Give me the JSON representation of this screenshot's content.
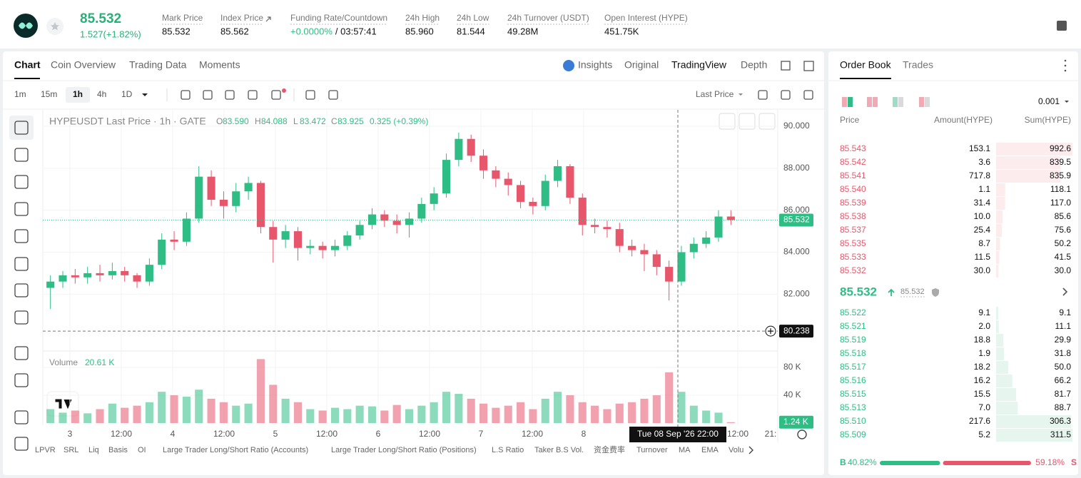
{
  "header": {
    "price": "85.532",
    "change": "1.527(+1.82%)",
    "stats": [
      {
        "label": "Mark Price",
        "value": "85.532"
      },
      {
        "label": "Index Price",
        "value": "85.562"
      },
      {
        "label": "Funding Rate/Countdown",
        "value": "+0.0000%",
        "extra": "/ 03:57:41"
      },
      {
        "label": "24h High",
        "value": "85.960"
      },
      {
        "label": "24h Low",
        "value": "81.544"
      },
      {
        "label": "24h Turnover (USDT)",
        "value": "49.28M"
      },
      {
        "label": "Open Interest (HYPE)",
        "value": "451.75K"
      }
    ]
  },
  "chart_tabs": [
    "Chart",
    "Coin Overview",
    "Trading Data",
    "Moments"
  ],
  "view_tabs": [
    "Insights",
    "Original",
    "TradingView",
    "Depth"
  ],
  "intervals": [
    "1m",
    "15m",
    "1h",
    "4h",
    "1D"
  ],
  "price_type": "Last Price",
  "legend": {
    "title": "HYPEUSDT Last Price · 1h · GATE",
    "ohlc_labels": [
      "O",
      "H",
      "L",
      "C"
    ],
    "ohlc": [
      "83.590",
      "84.088",
      "83.472",
      "83.925"
    ],
    "change": "0.325 (+0.39%)"
  },
  "chart": {
    "type": "candlestick",
    "candles": [
      [
        82.3,
        82.9,
        81.3,
        82.6
      ],
      [
        82.6,
        83.1,
        82.3,
        82.9
      ],
      [
        82.9,
        83.2,
        82.5,
        82.8
      ],
      [
        82.8,
        83.3,
        82.5,
        83.0
      ],
      [
        83.0,
        83.4,
        82.6,
        82.9
      ],
      [
        82.9,
        83.5,
        82.7,
        83.1
      ],
      [
        83.1,
        83.3,
        82.6,
        82.9
      ],
      [
        82.9,
        83.0,
        82.3,
        82.6
      ],
      [
        82.6,
        83.7,
        82.4,
        83.4
      ],
      [
        83.4,
        84.9,
        83.2,
        84.6
      ],
      [
        84.6,
        85.0,
        84.1,
        84.5
      ],
      [
        84.5,
        85.9,
        84.3,
        85.6
      ],
      [
        85.6,
        88.1,
        85.4,
        87.6
      ],
      [
        87.6,
        87.9,
        86.2,
        86.5
      ],
      [
        86.5,
        86.9,
        85.6,
        86.2
      ],
      [
        86.2,
        87.3,
        85.9,
        86.9
      ],
      [
        86.9,
        87.6,
        86.5,
        87.3
      ],
      [
        87.3,
        87.4,
        84.9,
        85.2
      ],
      [
        85.2,
        85.5,
        83.5,
        84.6
      ],
      [
        84.6,
        85.3,
        84.2,
        85.0
      ],
      [
        85.0,
        85.2,
        83.6,
        84.2
      ],
      [
        84.2,
        84.6,
        83.9,
        84.3
      ],
      [
        84.3,
        84.5,
        83.7,
        84.1
      ],
      [
        84.1,
        84.6,
        83.8,
        84.3
      ],
      [
        84.3,
        85.0,
        84.1,
        84.8
      ],
      [
        84.8,
        85.5,
        84.6,
        85.3
      ],
      [
        85.3,
        86.1,
        85.1,
        85.8
      ],
      [
        85.8,
        86.0,
        85.2,
        85.5
      ],
      [
        85.5,
        85.8,
        84.9,
        85.3
      ],
      [
        85.3,
        85.9,
        84.7,
        85.6
      ],
      [
        85.6,
        86.6,
        85.4,
        86.3
      ],
      [
        86.3,
        87.1,
        86.0,
        86.8
      ],
      [
        86.8,
        88.7,
        86.6,
        88.4
      ],
      [
        88.4,
        89.7,
        88.1,
        89.4
      ],
      [
        89.4,
        89.6,
        88.3,
        88.6
      ],
      [
        88.6,
        88.9,
        87.5,
        87.9
      ],
      [
        87.9,
        88.1,
        87.1,
        87.5
      ],
      [
        87.5,
        87.8,
        86.7,
        87.2
      ],
      [
        87.2,
        87.4,
        86.1,
        86.4
      ],
      [
        86.4,
        86.6,
        85.8,
        86.2
      ],
      [
        86.2,
        87.7,
        86.0,
        87.4
      ],
      [
        87.4,
        88.4,
        87.1,
        88.1
      ],
      [
        88.1,
        88.2,
        86.3,
        86.6
      ],
      [
        86.6,
        86.8,
        84.8,
        85.3
      ],
      [
        85.3,
        85.6,
        84.9,
        85.2
      ],
      [
        85.2,
        85.5,
        84.7,
        85.1
      ],
      [
        85.1,
        85.4,
        84.0,
        84.3
      ],
      [
        84.3,
        84.6,
        83.8,
        84.1
      ],
      [
        84.1,
        84.4,
        83.1,
        83.9
      ],
      [
        83.9,
        84.1,
        82.9,
        83.3
      ],
      [
        83.3,
        83.6,
        81.7,
        82.6
      ],
      [
        82.6,
        84.3,
        82.4,
        84.0
      ],
      [
        84.0,
        84.7,
        83.7,
        84.4
      ],
      [
        84.4,
        85.0,
        84.2,
        84.7
      ],
      [
        84.7,
        86.0,
        84.5,
        85.7
      ],
      [
        85.7,
        86.0,
        85.3,
        85.532
      ]
    ],
    "up_color": "#2ebd85",
    "down_color": "#e8566b",
    "ylim": [
      79.29,
      90.75
    ],
    "yticks": [
      {
        "value": 82,
        "label": "82.000"
      },
      {
        "value": 84,
        "label": "84.000"
      },
      {
        "value": 86,
        "label": "86.000"
      },
      {
        "value": 88,
        "label": "88.000"
      },
      {
        "value": 90,
        "label": "90.000"
      }
    ],
    "grid": true,
    "last_price": {
      "value": 85.532,
      "label": "85.532"
    },
    "crosshair": {
      "price": {
        "value": 80.238,
        "label": "80.238"
      },
      "time": "Tue 08 Sep '26  22:00"
    },
    "xlabels": [
      "3",
      "12:00",
      "4",
      "12:00",
      "5",
      "12:00",
      "6",
      "12:00",
      "7",
      "12:00",
      "8",
      "12:00",
      "21:"
    ],
    "volume": {
      "label": "Volume",
      "current": "20.61 K",
      "values": [
        20,
        15,
        18,
        14,
        20,
        28,
        22,
        25,
        30,
        45,
        40,
        38,
        48,
        35,
        30,
        25,
        28,
        92,
        55,
        35,
        30,
        20,
        18,
        22,
        20,
        25,
        24,
        18,
        26,
        20,
        25,
        30,
        45,
        42,
        35,
        28,
        22,
        25,
        30,
        20,
        35,
        45,
        40,
        30,
        25,
        20,
        28,
        30,
        35,
        40,
        73,
        45,
        25,
        18,
        15,
        1.24
      ],
      "ylim": [
        0,
        98.5
      ],
      "yticks": [
        {
          "value": 40,
          "label": "40 K"
        },
        {
          "value": 80,
          "label": "80 K"
        }
      ],
      "last": {
        "value": 1.24,
        "label": "1.24 K"
      }
    }
  },
  "indicators": [
    "LPVR",
    "SRL",
    "Liq",
    "Basis",
    "OI",
    "Large Trader Long/Short Ratio (Accounts)",
    "Large Trader Long/Short Ratio (Positions)",
    "L.S Ratio",
    "Taker B.S Vol.",
    "资金费率",
    "Turnover",
    "MA",
    "EMA",
    "Volu"
  ],
  "order_book": {
    "tabs": [
      "Order Book",
      "Trades"
    ],
    "precision": "0.001",
    "columns": [
      "Price",
      "Amount(HYPE)",
      "Sum(HYPE)"
    ],
    "asks": [
      [
        "85.543",
        "153.1",
        "992.6"
      ],
      [
        "85.542",
        "3.6",
        "839.5"
      ],
      [
        "85.541",
        "717.8",
        "835.9"
      ],
      [
        "85.540",
        "1.1",
        "118.1"
      ],
      [
        "85.539",
        "31.4",
        "117.0"
      ],
      [
        "85.538",
        "10.0",
        "85.6"
      ],
      [
        "85.537",
        "25.4",
        "75.6"
      ],
      [
        "85.535",
        "8.7",
        "50.2"
      ],
      [
        "85.533",
        "11.5",
        "41.5"
      ],
      [
        "85.532",
        "30.0",
        "30.0"
      ]
    ],
    "last": "85.532",
    "mark": "85.532",
    "bids": [
      [
        "85.522",
        "9.1",
        "9.1"
      ],
      [
        "85.521",
        "2.0",
        "11.1"
      ],
      [
        "85.519",
        "18.8",
        "29.9"
      ],
      [
        "85.518",
        "1.9",
        "31.8"
      ],
      [
        "85.517",
        "18.2",
        "50.0"
      ],
      [
        "85.516",
        "16.2",
        "66.2"
      ],
      [
        "85.515",
        "15.5",
        "81.7"
      ],
      [
        "85.513",
        "7.0",
        "88.7"
      ],
      [
        "85.510",
        "217.6",
        "306.3"
      ],
      [
        "85.509",
        "5.2",
        "311.5"
      ]
    ],
    "buy_label": "B",
    "buy_ratio": "40.82%",
    "sell_ratio": "59.18%",
    "sell_label": "S"
  }
}
